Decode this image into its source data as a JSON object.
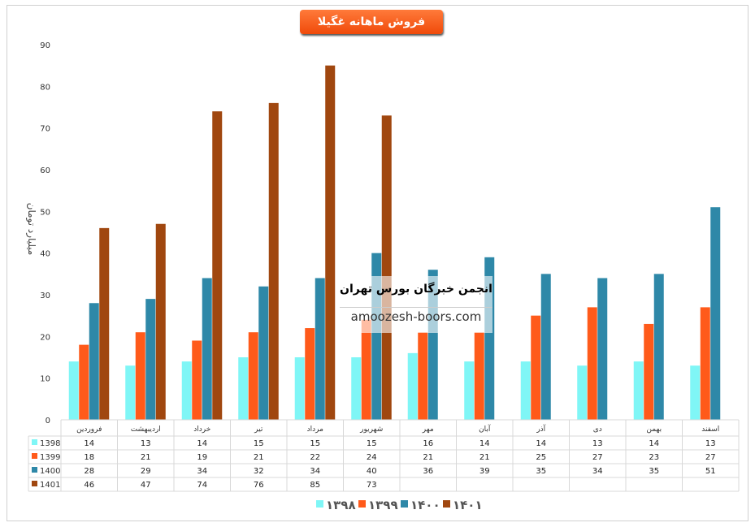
{
  "chart_data": {
    "type": "bar",
    "title": "فروش ماهانه غگیلا",
    "ylabel": "میلیارد تومان",
    "ylim": [
      0,
      90
    ],
    "yticks": [
      0,
      10,
      20,
      30,
      40,
      50,
      60,
      70,
      80,
      90
    ],
    "grid": false,
    "legend": "bottom",
    "categories": [
      "فروردین",
      "اردیبهشت",
      "خرداد",
      "تیر",
      "مرداد",
      "شهریور",
      "مهر",
      "آبان",
      "آذر",
      "دی",
      "بهمن",
      "اسفند"
    ],
    "series": [
      {
        "name": "1398",
        "legend_label": "۱۳۹۸",
        "color": "#7ff6f6",
        "values": [
          14,
          13,
          14,
          15,
          15,
          15,
          16,
          14,
          14,
          13,
          14,
          13
        ]
      },
      {
        "name": "1399",
        "legend_label": "۱۳۹۹",
        "color": "#ff5a1a",
        "values": [
          18,
          21,
          19,
          21,
          22,
          24,
          21,
          21,
          25,
          27,
          23,
          27
        ]
      },
      {
        "name": "1400",
        "legend_label": "۱۴۰۰",
        "color": "#2e88a8",
        "values": [
          28,
          29,
          34,
          32,
          34,
          40,
          36,
          39,
          35,
          34,
          35,
          51
        ]
      },
      {
        "name": "1401",
        "legend_label": "۱۴۰۱",
        "color": "#a0470f",
        "values": [
          46,
          47,
          74,
          76,
          85,
          73,
          null,
          null,
          null,
          null,
          null,
          null
        ]
      }
    ]
  },
  "watermark": {
    "line1": "انجمن خبرگان بورس تهران",
    "line2": "amoozesh-boors.com"
  }
}
